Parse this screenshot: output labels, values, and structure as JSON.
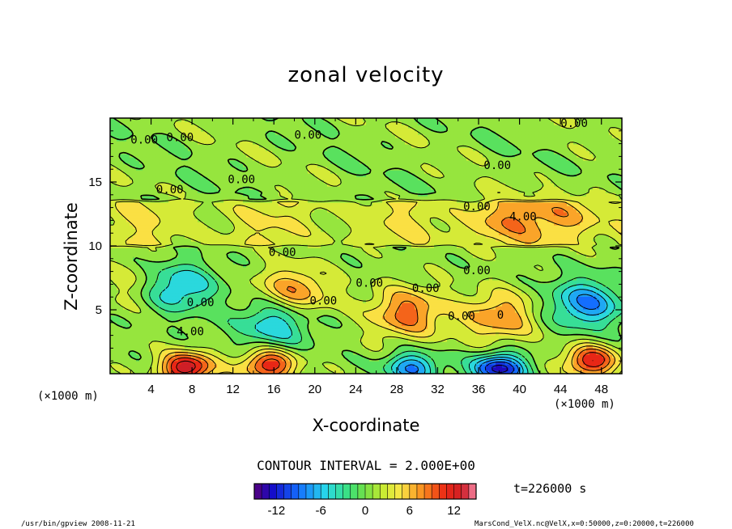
{
  "chart_data": {
    "type": "contour",
    "title": "zonal velocity",
    "xlabel": "X-coordinate",
    "ylabel": "Z-coordinate",
    "x_units": "(×1000 m)",
    "y_units": "(×1000 m)",
    "xlim": [
      0,
      50
    ],
    "ylim": [
      0,
      20
    ],
    "x_ticks": [
      "4",
      "8",
      "12",
      "16",
      "20",
      "24",
      "28",
      "32",
      "36",
      "40",
      "44",
      "48"
    ],
    "y_ticks": [
      "5",
      "10",
      "15"
    ],
    "contour_interval_text": "CONTOUR INTERVAL = 2.000E+00",
    "time_label": "t=226000 s",
    "colorbar": {
      "min": -15,
      "max": 15,
      "ticks": [
        "-12",
        "-6",
        "0",
        "6",
        "12"
      ]
    },
    "contour_labels": [
      "0.00",
      "0.00",
      "0.00",
      "0.00",
      "0.00",
      "0.00",
      "4.00",
      "0.00",
      "0.00",
      "0.00",
      "0.00",
      "0.00",
      "4.00",
      "0.00",
      "0.00",
      "0.00",
      "0.00",
      "0"
    ],
    "features": [
      {
        "x": 6.5,
        "z": 6.8,
        "value": -8
      },
      {
        "x": 16,
        "z": 4.0,
        "value": -7
      },
      {
        "x": 18,
        "z": 6.5,
        "value": 7
      },
      {
        "x": 29,
        "z": 4.8,
        "value": 8
      },
      {
        "x": 38,
        "z": 4.5,
        "value": 7
      },
      {
        "x": 46.5,
        "z": 5.5,
        "value": -9
      },
      {
        "x": 7.5,
        "z": 0.5,
        "value": 13
      },
      {
        "x": 15.5,
        "z": 0.7,
        "value": 11
      },
      {
        "x": 29.5,
        "z": 0.5,
        "value": -9
      },
      {
        "x": 38,
        "z": 0.4,
        "value": -14
      },
      {
        "x": 47,
        "z": 1.0,
        "value": 11
      },
      {
        "x": 38,
        "z": 12.0,
        "value": 4
      },
      {
        "x": 45,
        "z": 12.5,
        "value": 4
      },
      {
        "x": 3,
        "z": 7.0,
        "value": 3
      }
    ]
  },
  "header": {
    "title": "zonal velocity"
  },
  "axes": {
    "xlabel": "X-coordinate",
    "ylabel": "Z-coordinate",
    "x_units_left": "(×1000 m)",
    "x_units_right": "(×1000 m)"
  },
  "footer": {
    "contour_interval": "CONTOUR INTERVAL = 2.000E+00",
    "time": "t=226000 s",
    "program": "/usr/bin/gpview   2008-11-21",
    "source": "MarsCond_VelX.nc@VelX,x=0:50000,z=0:20000,t=226000"
  },
  "colors": {
    "background": "#ffffff",
    "frame": "#000000"
  }
}
